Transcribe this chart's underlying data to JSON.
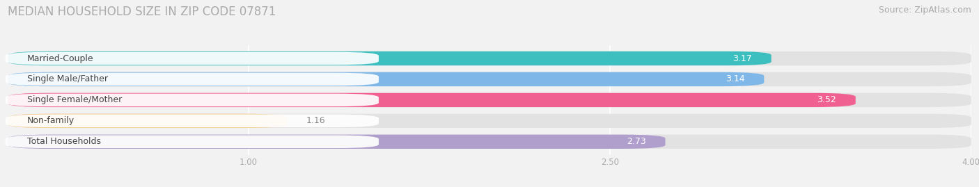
{
  "title": "MEDIAN HOUSEHOLD SIZE IN ZIP CODE 07871",
  "source": "Source: ZipAtlas.com",
  "categories": [
    "Married-Couple",
    "Single Male/Father",
    "Single Female/Mother",
    "Non-family",
    "Total Households"
  ],
  "values": [
    3.17,
    3.14,
    3.52,
    1.16,
    2.73
  ],
  "bar_colors": [
    "#3dbfbf",
    "#7fb8e8",
    "#f06090",
    "#f5c98a",
    "#b09fcc"
  ],
  "label_text_colors": [
    "#555555",
    "#555555",
    "#555555",
    "#555555",
    "#555555"
  ],
  "value_text_colors": [
    "white",
    "white",
    "white",
    "#888888",
    "#888888"
  ],
  "xlim": [
    0,
    4.0
  ],
  "xmin": 0,
  "xticks": [
    1.0,
    2.5,
    4.0
  ],
  "background_color": "#f2f2f2",
  "bar_bg_color": "#e2e2e2",
  "title_fontsize": 12,
  "source_fontsize": 9,
  "label_fontsize": 9,
  "value_fontsize": 9,
  "bar_height": 0.68,
  "bar_gap": 0.1
}
